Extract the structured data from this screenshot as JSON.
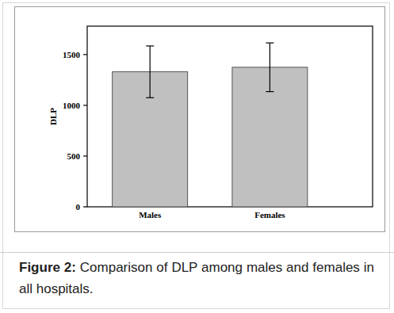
{
  "chart_data": {
    "type": "bar",
    "caption": {
      "label": "Figure 2:",
      "text": "Comparison of DLP among males and females in all hospitals."
    },
    "y_label": "DLP",
    "categories": [
      "Males",
      "Females"
    ],
    "values": [
      1330,
      1375
    ],
    "errors": [
      255,
      240
    ],
    "color": "#c0c0c0",
    "ylim": [
      0,
      1780
    ],
    "yticks": [
      0,
      500,
      1000,
      1500
    ],
    "grid": false
  }
}
